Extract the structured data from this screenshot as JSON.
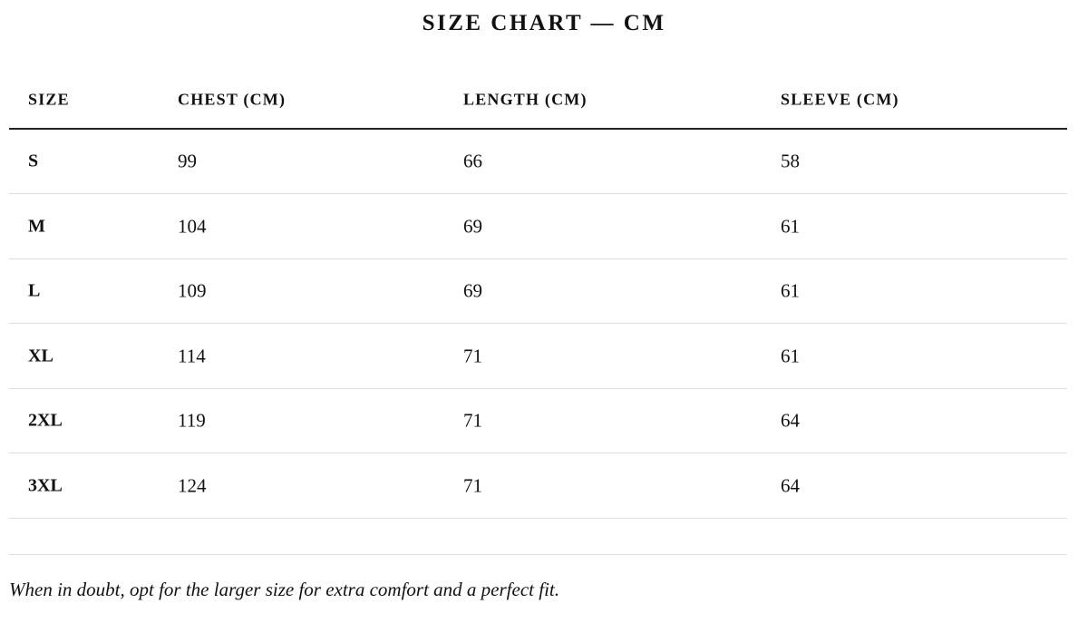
{
  "header": {
    "title": "SIZE CHART — CM"
  },
  "table": {
    "columns": [
      "SIZE",
      "CHEST (CM)",
      "LENGTH (CM)",
      "SLEEVE (CM)"
    ],
    "rows": [
      [
        "S",
        "99",
        "66",
        "58"
      ],
      [
        "M",
        "104",
        "69",
        "61"
      ],
      [
        "L",
        "109",
        "69",
        "61"
      ],
      [
        "XL",
        "114",
        "71",
        "61"
      ],
      [
        "2XL",
        "119",
        "71",
        "64"
      ],
      [
        "3XL",
        "124",
        "71",
        "64"
      ]
    ]
  },
  "note": "When in doubt, opt for the larger size for extra comfort and a perfect fit."
}
